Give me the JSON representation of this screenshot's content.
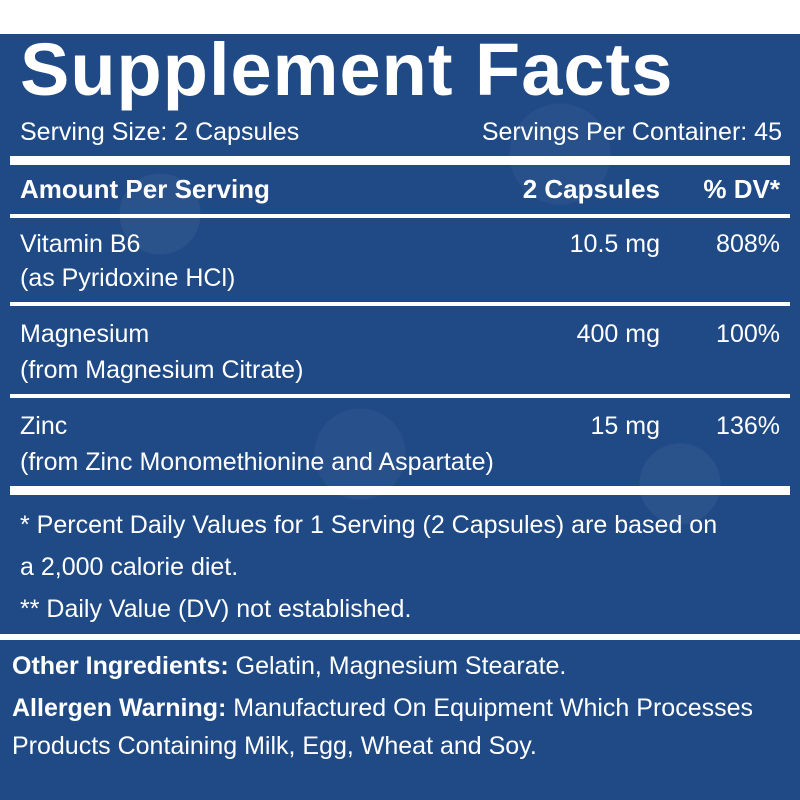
{
  "title": "Supplement Facts",
  "serving_size": "Serving Size: 2 Capsules",
  "servings_per_container": "Servings Per Container: 45",
  "header": {
    "label": "Amount Per Serving",
    "amount": "2 Capsules",
    "dv": "% DV*"
  },
  "nutrients": [
    {
      "name": "Vitamin B6",
      "source": "(as Pyridoxine HCl)",
      "amount": "10.5 mg",
      "dv": "808%"
    },
    {
      "name": "Magnesium",
      "source": "(from Magnesium Citrate)",
      "amount": "400 mg",
      "dv": "100%"
    },
    {
      "name": "Zinc",
      "source": "(from Zinc Monomethionine and Aspartate)",
      "amount": "15 mg",
      "dv": "136%"
    }
  ],
  "footnotes": {
    "line1": "* Percent Daily Values for 1 Serving (2 Capsules) are based on",
    "line2": "a 2,000 calorie diet.",
    "line3": "** Daily Value (DV) not established."
  },
  "other_ingredients": {
    "label": "Other Ingredients:",
    "text": " Gelatin, Magnesium Stearate."
  },
  "allergen_warning": {
    "label": "Allergen Warning:",
    "text_line1": " Manufactured On Equipment Which Processes",
    "text_line2": "Products Containing Milk, Egg, Wheat and Soy."
  },
  "colors": {
    "background_blue": "#1f4a86",
    "text": "#ffffff"
  }
}
